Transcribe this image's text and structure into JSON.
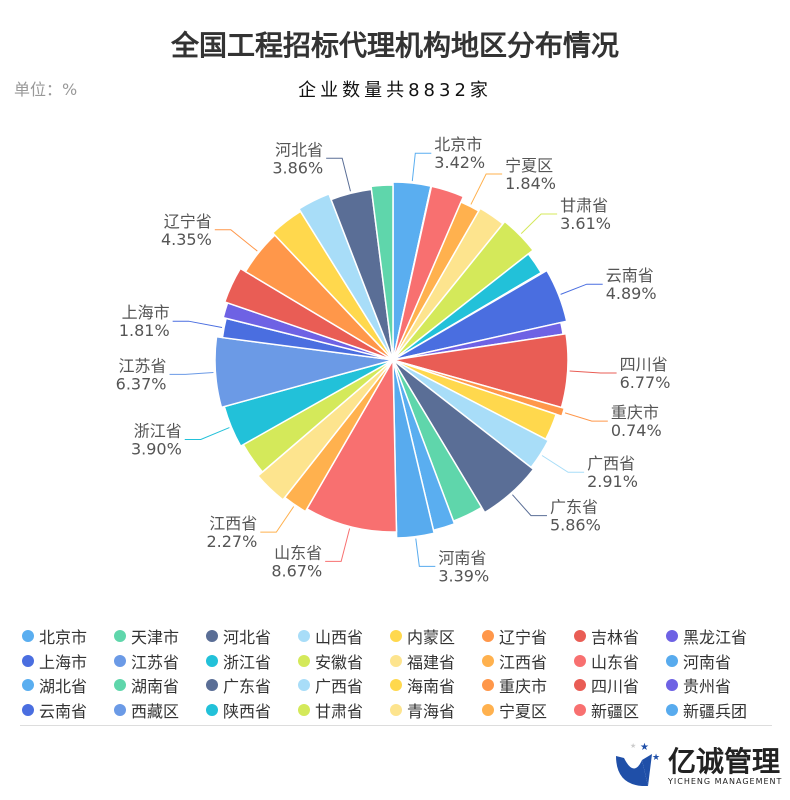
{
  "title": "全国工程招标代理机构地区分布情况",
  "subtitle": "企业数量共8832家",
  "unit": "单位：%",
  "logo": {
    "name": "亿诚管理",
    "sub": "YICHENG MANAGEMENT"
  },
  "chart_data": {
    "type": "pie",
    "rose": true,
    "unit": "%",
    "legend_position": "bottom",
    "palette": [
      "#5AAEF0",
      "#5FD6AB",
      "#5A6E96",
      "#A8DDF8",
      "#FFD84D",
      "#FF974A",
      "#E95D55",
      "#6E62E4",
      "#4A6EE0",
      "#6B9AE6",
      "#22C1D9",
      "#D4E95A",
      "#FDE48E",
      "#FFB14E",
      "#F87070",
      "#58ABEE"
    ],
    "slices": [
      {
        "name": "北京市",
        "value": 3.42,
        "label": "3.42%"
      },
      {
        "name": "天津市",
        "value": 2.0
      },
      {
        "name": "河北省",
        "value": 3.86,
        "label": "3.86%"
      },
      {
        "name": "山西省",
        "value": 3.0
      },
      {
        "name": "内蒙区",
        "value": 3.2
      },
      {
        "name": "辽宁省",
        "value": 4.35,
        "label": "4.35%"
      },
      {
        "name": "吉林省",
        "value": 3.3
      },
      {
        "name": "黑龙江省",
        "value": 1.4
      },
      {
        "name": "上海市",
        "value": 1.81,
        "label": "1.81%"
      },
      {
        "name": "江苏省",
        "value": 6.37,
        "label": "6.37%"
      },
      {
        "name": "浙江省",
        "value": 3.9,
        "label": "3.90%"
      },
      {
        "name": "安徽省",
        "value": 3.1
      },
      {
        "name": "福建省",
        "value": 3.1
      },
      {
        "name": "江西省",
        "value": 2.27,
        "label": "2.27%"
      },
      {
        "name": "山东省",
        "value": 8.67,
        "label": "8.67%"
      },
      {
        "name": "河南省",
        "value": 3.39,
        "label": "3.39%"
      },
      {
        "name": "湖北省",
        "value": 2.0
      },
      {
        "name": "湖南省",
        "value": 2.9
      },
      {
        "name": "广东省",
        "value": 5.86,
        "label": "5.86%"
      },
      {
        "name": "广西省",
        "value": 2.91,
        "label": "2.91%"
      },
      {
        "name": "海南省",
        "value": 2.5
      },
      {
        "name": "重庆市",
        "value": 0.74,
        "label": "0.74%"
      },
      {
        "name": "四川省",
        "value": 6.77,
        "label": "6.77%"
      },
      {
        "name": "贵州省",
        "value": 1.1
      },
      {
        "name": "云南省",
        "value": 4.89,
        "label": "4.89%"
      },
      {
        "name": "西藏区",
        "value": 0.1
      },
      {
        "name": "陕西省",
        "value": 2.1
      },
      {
        "name": "甘肃省",
        "value": 3.61,
        "label": "3.61%"
      },
      {
        "name": "青海省",
        "value": 2.5
      },
      {
        "name": "宁夏区",
        "value": 1.84,
        "label": "1.84%"
      },
      {
        "name": "新疆区",
        "value": 3.0
      },
      {
        "name": "新疆兵团",
        "value": 0.05
      }
    ]
  }
}
